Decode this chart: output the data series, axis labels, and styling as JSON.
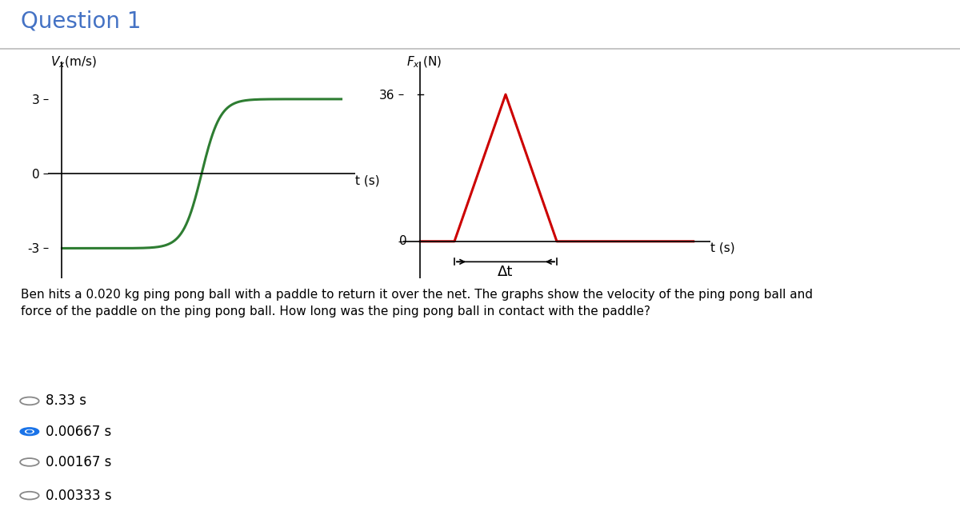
{
  "title": "Question 1",
  "title_color": "#4472c4",
  "title_fontsize": 20,
  "background_color": "#ffffff",
  "graph1": {
    "ylabel": "V_x(m/s)",
    "xlabel": "t (s)",
    "yticks": [
      -3,
      0,
      3
    ],
    "curve_color": "#2e7d32",
    "line_color": "#000000"
  },
  "graph2": {
    "ylabel": "F_x (N)",
    "xlabel": "t (s)",
    "ytick_36": 36,
    "ytick_0": 0,
    "curve_color": "#cc0000",
    "line_color": "#000000",
    "delta_t_label": "Δt"
  },
  "question_text": "Ben hits a 0.020 kg ping pong ball with a paddle to return it over the net. The graphs show the velocity of the ping pong ball and\nforce of the paddle on the ping pong ball. How long was the ping pong ball in contact with the paddle?",
  "choices": [
    {
      "label": "8.33 s",
      "selected": false
    },
    {
      "label": "0.00667 s",
      "selected": true
    },
    {
      "label": "0.00167 s",
      "selected": false
    },
    {
      "label": "0.00333 s",
      "selected": false
    }
  ],
  "choice_color_selected": "#1a73e8",
  "choice_color_unselected": "#888888",
  "separator_color": "#bbbbbb"
}
